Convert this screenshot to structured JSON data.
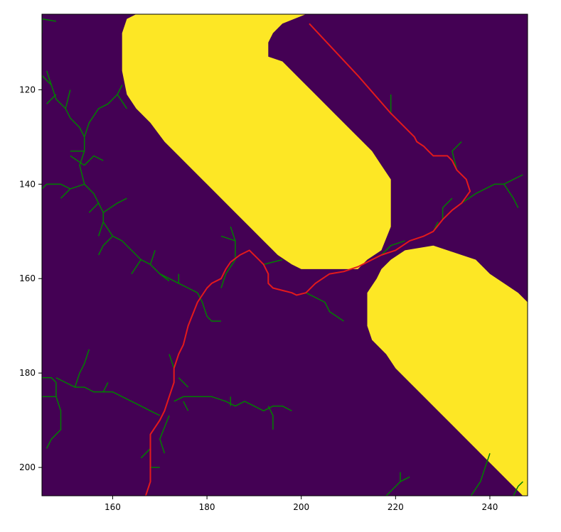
{
  "chart_data": {
    "type": "heatmap",
    "title": "",
    "xlabel": "",
    "ylabel": "",
    "xlim": [
      145,
      248
    ],
    "ylim": [
      206,
      104
    ],
    "x_ticks": [
      "160",
      "180",
      "200",
      "220",
      "240"
    ],
    "y_ticks": [
      "120",
      "140",
      "160",
      "180",
      "200"
    ],
    "grid": false,
    "colors": {
      "free_space": "#440154",
      "obstacle": "#fde725",
      "tree": "#008000",
      "path": "#e31a1c"
    },
    "obstacles": [
      {
        "name": "obstacle-upper",
        "polygon": [
          [
            162,
            116
          ],
          [
            162,
            108
          ],
          [
            163,
            105
          ],
          [
            165,
            104
          ],
          [
            201,
            104
          ],
          [
            196,
            106
          ],
          [
            194,
            108
          ],
          [
            193,
            110
          ],
          [
            193,
            113
          ],
          [
            196,
            114
          ],
          [
            198,
            116
          ],
          [
            200,
            118
          ],
          [
            203,
            121
          ],
          [
            207,
            125
          ],
          [
            211,
            129
          ],
          [
            215,
            133
          ],
          [
            217,
            136
          ],
          [
            219,
            139
          ],
          [
            219,
            144
          ],
          [
            219,
            149
          ],
          [
            217,
            154
          ],
          [
            214,
            156
          ],
          [
            212,
            158
          ],
          [
            200,
            158
          ],
          [
            198,
            157
          ],
          [
            195,
            155
          ],
          [
            192,
            152
          ],
          [
            189,
            149
          ],
          [
            186,
            146
          ],
          [
            183,
            143
          ],
          [
            180,
            140
          ],
          [
            177,
            137
          ],
          [
            174,
            134
          ],
          [
            171,
            131
          ],
          [
            168,
            127
          ],
          [
            165,
            124
          ],
          [
            163,
            121
          ]
        ]
      },
      {
        "name": "obstacle-lower",
        "polygon": [
          [
            222,
            154
          ],
          [
            228,
            153
          ],
          [
            231,
            154
          ],
          [
            234,
            155
          ],
          [
            237,
            156
          ],
          [
            240,
            159
          ],
          [
            243,
            161
          ],
          [
            246,
            163
          ],
          [
            248,
            165
          ],
          [
            248,
            206
          ],
          [
            247,
            206
          ],
          [
            244,
            203
          ],
          [
            241,
            200
          ],
          [
            238,
            197
          ],
          [
            235,
            194
          ],
          [
            232,
            191
          ],
          [
            229,
            188
          ],
          [
            226,
            185
          ],
          [
            223,
            182
          ],
          [
            220,
            179
          ],
          [
            218,
            176
          ],
          [
            215,
            173
          ],
          [
            214,
            170
          ],
          [
            214,
            163
          ],
          [
            216,
            160
          ],
          [
            217,
            158
          ],
          [
            219,
            156
          ]
        ]
      }
    ],
    "series": [
      {
        "type": "path",
        "points": [
          [
            201.7,
            106
          ],
          [
            212,
            117
          ],
          [
            219,
            125
          ],
          [
            224,
            130
          ],
          [
            224.5,
            131
          ],
          [
            226,
            132
          ],
          [
            227,
            133
          ],
          [
            228,
            134
          ],
          [
            231,
            134
          ],
          [
            232,
            135
          ],
          [
            233,
            137
          ],
          [
            235,
            139
          ],
          [
            235.8,
            141.5
          ],
          [
            234,
            144
          ],
          [
            232,
            145.5
          ],
          [
            230,
            147.5
          ],
          [
            228,
            150
          ],
          [
            226,
            151
          ],
          [
            223,
            152
          ],
          [
            220,
            154
          ],
          [
            217,
            155
          ],
          [
            214,
            156.5
          ],
          [
            212,
            157.5
          ],
          [
            209,
            158.5
          ],
          [
            206,
            159
          ],
          [
            203,
            161
          ],
          [
            201,
            163
          ],
          [
            199,
            163.5
          ],
          [
            198,
            163
          ],
          [
            196,
            162.5
          ],
          [
            194,
            162
          ],
          [
            193,
            161
          ],
          [
            193,
            159
          ],
          [
            192,
            157
          ],
          [
            191,
            156
          ],
          [
            189,
            154
          ],
          [
            187,
            155
          ],
          [
            185,
            156.5
          ],
          [
            184,
            158
          ],
          [
            183,
            160
          ],
          [
            181,
            161
          ],
          [
            180,
            162
          ],
          [
            178,
            165
          ],
          [
            176,
            170
          ],
          [
            175,
            174
          ],
          [
            174,
            176
          ],
          [
            173,
            179
          ],
          [
            173,
            182
          ],
          [
            172,
            185
          ],
          [
            171,
            188
          ],
          [
            170,
            190
          ],
          [
            168,
            193
          ],
          [
            168,
            196
          ],
          [
            168,
            200
          ],
          [
            168,
            203
          ],
          [
            167,
            206
          ]
        ]
      }
    ],
    "tree_edges": [
      [
        [
          145,
          105
        ],
        [
          148,
          105.5
        ]
      ],
      [
        [
          145,
          105
        ],
        [
          145,
          108
        ]
      ],
      [
        [
          145,
          117
        ],
        [
          147,
          119
        ],
        [
          148,
          122
        ],
        [
          150,
          124
        ],
        [
          151,
          126
        ],
        [
          153,
          128
        ],
        [
          154,
          130
        ]
      ],
      [
        [
          147,
          119
        ],
        [
          146,
          116
        ]
      ],
      [
        [
          148,
          121
        ],
        [
          146,
          123
        ]
      ],
      [
        [
          150,
          124
        ],
        [
          151,
          120
        ]
      ],
      [
        [
          154,
          130
        ],
        [
          155,
          127
        ],
        [
          157,
          124
        ],
        [
          159,
          123
        ],
        [
          161,
          121
        ]
      ],
      [
        [
          161,
          121
        ],
        [
          162,
          119
        ]
      ],
      [
        [
          161,
          121
        ],
        [
          163,
          124
        ]
      ],
      [
        [
          154,
          130
        ],
        [
          154,
          133
        ],
        [
          153,
          136
        ],
        [
          154,
          140
        ],
        [
          156,
          142
        ],
        [
          157,
          144
        ],
        [
          158,
          146
        ],
        [
          158,
          148
        ],
        [
          160,
          151
        ],
        [
          162,
          152
        ],
        [
          164,
          154
        ],
        [
          166,
          156
        ],
        [
          168,
          157
        ],
        [
          170,
          159
        ],
        [
          172,
          160
        ],
        [
          174,
          161
        ],
        [
          176,
          162
        ],
        [
          178,
          163
        ]
      ],
      [
        [
          154,
          133
        ],
        [
          151,
          133
        ]
      ],
      [
        [
          154,
          136
        ],
        [
          151,
          134
        ]
      ],
      [
        [
          154,
          136
        ],
        [
          156,
          134
        ],
        [
          158,
          135
        ]
      ],
      [
        [
          154,
          140
        ],
        [
          151,
          141
        ],
        [
          149,
          143
        ]
      ],
      [
        [
          151,
          141
        ],
        [
          149,
          140
        ],
        [
          146,
          140
        ],
        [
          145,
          141
        ]
      ],
      [
        [
          157,
          144
        ],
        [
          155,
          146
        ]
      ],
      [
        [
          158,
          146
        ],
        [
          161,
          144
        ],
        [
          163,
          143
        ]
      ],
      [
        [
          158,
          148
        ],
        [
          157,
          151
        ]
      ],
      [
        [
          160,
          151
        ],
        [
          158,
          153
        ],
        [
          157,
          155
        ]
      ],
      [
        [
          166,
          156
        ],
        [
          164,
          159
        ]
      ],
      [
        [
          168,
          157
        ],
        [
          169,
          154
        ]
      ],
      [
        [
          170,
          159
        ],
        [
          172,
          160.5
        ]
      ],
      [
        [
          174,
          161
        ],
        [
          174,
          159
        ]
      ],
      [
        [
          178,
          163
        ],
        [
          179,
          165
        ],
        [
          180,
          168
        ],
        [
          181,
          169
        ],
        [
          183,
          169
        ]
      ],
      [
        [
          183,
          162
        ],
        [
          184,
          159
        ],
        [
          186,
          156
        ],
        [
          186,
          152
        ],
        [
          185,
          149
        ]
      ],
      [
        [
          186,
          152
        ],
        [
          183,
          151
        ]
      ],
      [
        [
          192,
          157
        ],
        [
          196,
          156
        ]
      ],
      [
        [
          201,
          163
        ],
        [
          205,
          165
        ],
        [
          206,
          167
        ],
        [
          209,
          169
        ]
      ],
      [
        [
          148,
          181
        ],
        [
          150,
          182
        ],
        [
          152,
          183
        ],
        [
          154,
          183
        ],
        [
          156,
          184
        ],
        [
          158,
          184
        ],
        [
          160,
          184
        ],
        [
          162,
          185
        ],
        [
          164,
          186
        ],
        [
          166,
          187
        ],
        [
          168,
          188
        ],
        [
          170,
          189
        ]
      ],
      [
        [
          145,
          181
        ],
        [
          147,
          181
        ],
        [
          148,
          182
        ]
      ],
      [
        [
          148,
          182
        ],
        [
          148,
          185
        ],
        [
          149,
          188
        ],
        [
          149,
          192
        ],
        [
          147,
          194
        ],
        [
          146,
          196
        ]
      ],
      [
        [
          148,
          185
        ],
        [
          145,
          185
        ]
      ],
      [
        [
          155,
          175
        ],
        [
          154,
          178
        ],
        [
          153,
          180
        ],
        [
          152,
          183
        ]
      ],
      [
        [
          158,
          184
        ],
        [
          159,
          182
        ]
      ],
      [
        [
          173,
          186
        ],
        [
          175,
          185
        ],
        [
          178,
          185
        ],
        [
          181,
          185
        ],
        [
          184,
          186
        ],
        [
          186,
          187
        ],
        [
          188,
          186
        ],
        [
          190,
          187
        ],
        [
          192,
          188
        ],
        [
          194,
          187
        ],
        [
          196,
          187
        ],
        [
          198,
          188
        ]
      ],
      [
        [
          173,
          179
        ],
        [
          172,
          176
        ]
      ],
      [
        [
          174,
          181
        ],
        [
          176,
          183
        ]
      ],
      [
        [
          172,
          189
        ],
        [
          170,
          194
        ],
        [
          171,
          197
        ]
      ],
      [
        [
          168,
          196
        ],
        [
          166,
          198
        ]
      ],
      [
        [
          168,
          200
        ],
        [
          170,
          200
        ]
      ],
      [
        [
          175,
          186
        ],
        [
          176,
          188
        ]
      ],
      [
        [
          185,
          187
        ],
        [
          185,
          185
        ]
      ],
      [
        [
          193,
          187
        ],
        [
          194,
          189
        ],
        [
          194,
          192
        ]
      ],
      [
        [
          228,
          150
        ],
        [
          229,
          148
        ]
      ],
      [
        [
          230,
          147.5
        ],
        [
          230,
          145
        ],
        [
          232,
          143
        ]
      ],
      [
        [
          234,
          144
        ],
        [
          237,
          142
        ],
        [
          239,
          141
        ],
        [
          241,
          140
        ],
        [
          243,
          140
        ],
        [
          245,
          139
        ],
        [
          247,
          138
        ]
      ],
      [
        [
          243,
          140
        ],
        [
          245,
          143
        ],
        [
          246,
          145
        ]
      ],
      [
        [
          233,
          137
        ],
        [
          232,
          133
        ],
        [
          234,
          131
        ]
      ],
      [
        [
          219,
          125
        ],
        [
          219,
          121
        ]
      ],
      [
        [
          211,
          116
        ],
        [
          212,
          117
        ]
      ],
      [
        [
          217,
          155
        ],
        [
          219,
          153
        ],
        [
          222,
          152
        ]
      ],
      [
        [
          218,
          206
        ],
        [
          221,
          203
        ],
        [
          223,
          202
        ]
      ],
      [
        [
          221,
          203
        ],
        [
          221,
          201
        ]
      ],
      [
        [
          236,
          206
        ],
        [
          238,
          203
        ],
        [
          239,
          200
        ],
        [
          240,
          197
        ]
      ],
      [
        [
          245,
          206
        ],
        [
          246,
          204
        ],
        [
          247,
          203
        ]
      ]
    ]
  }
}
